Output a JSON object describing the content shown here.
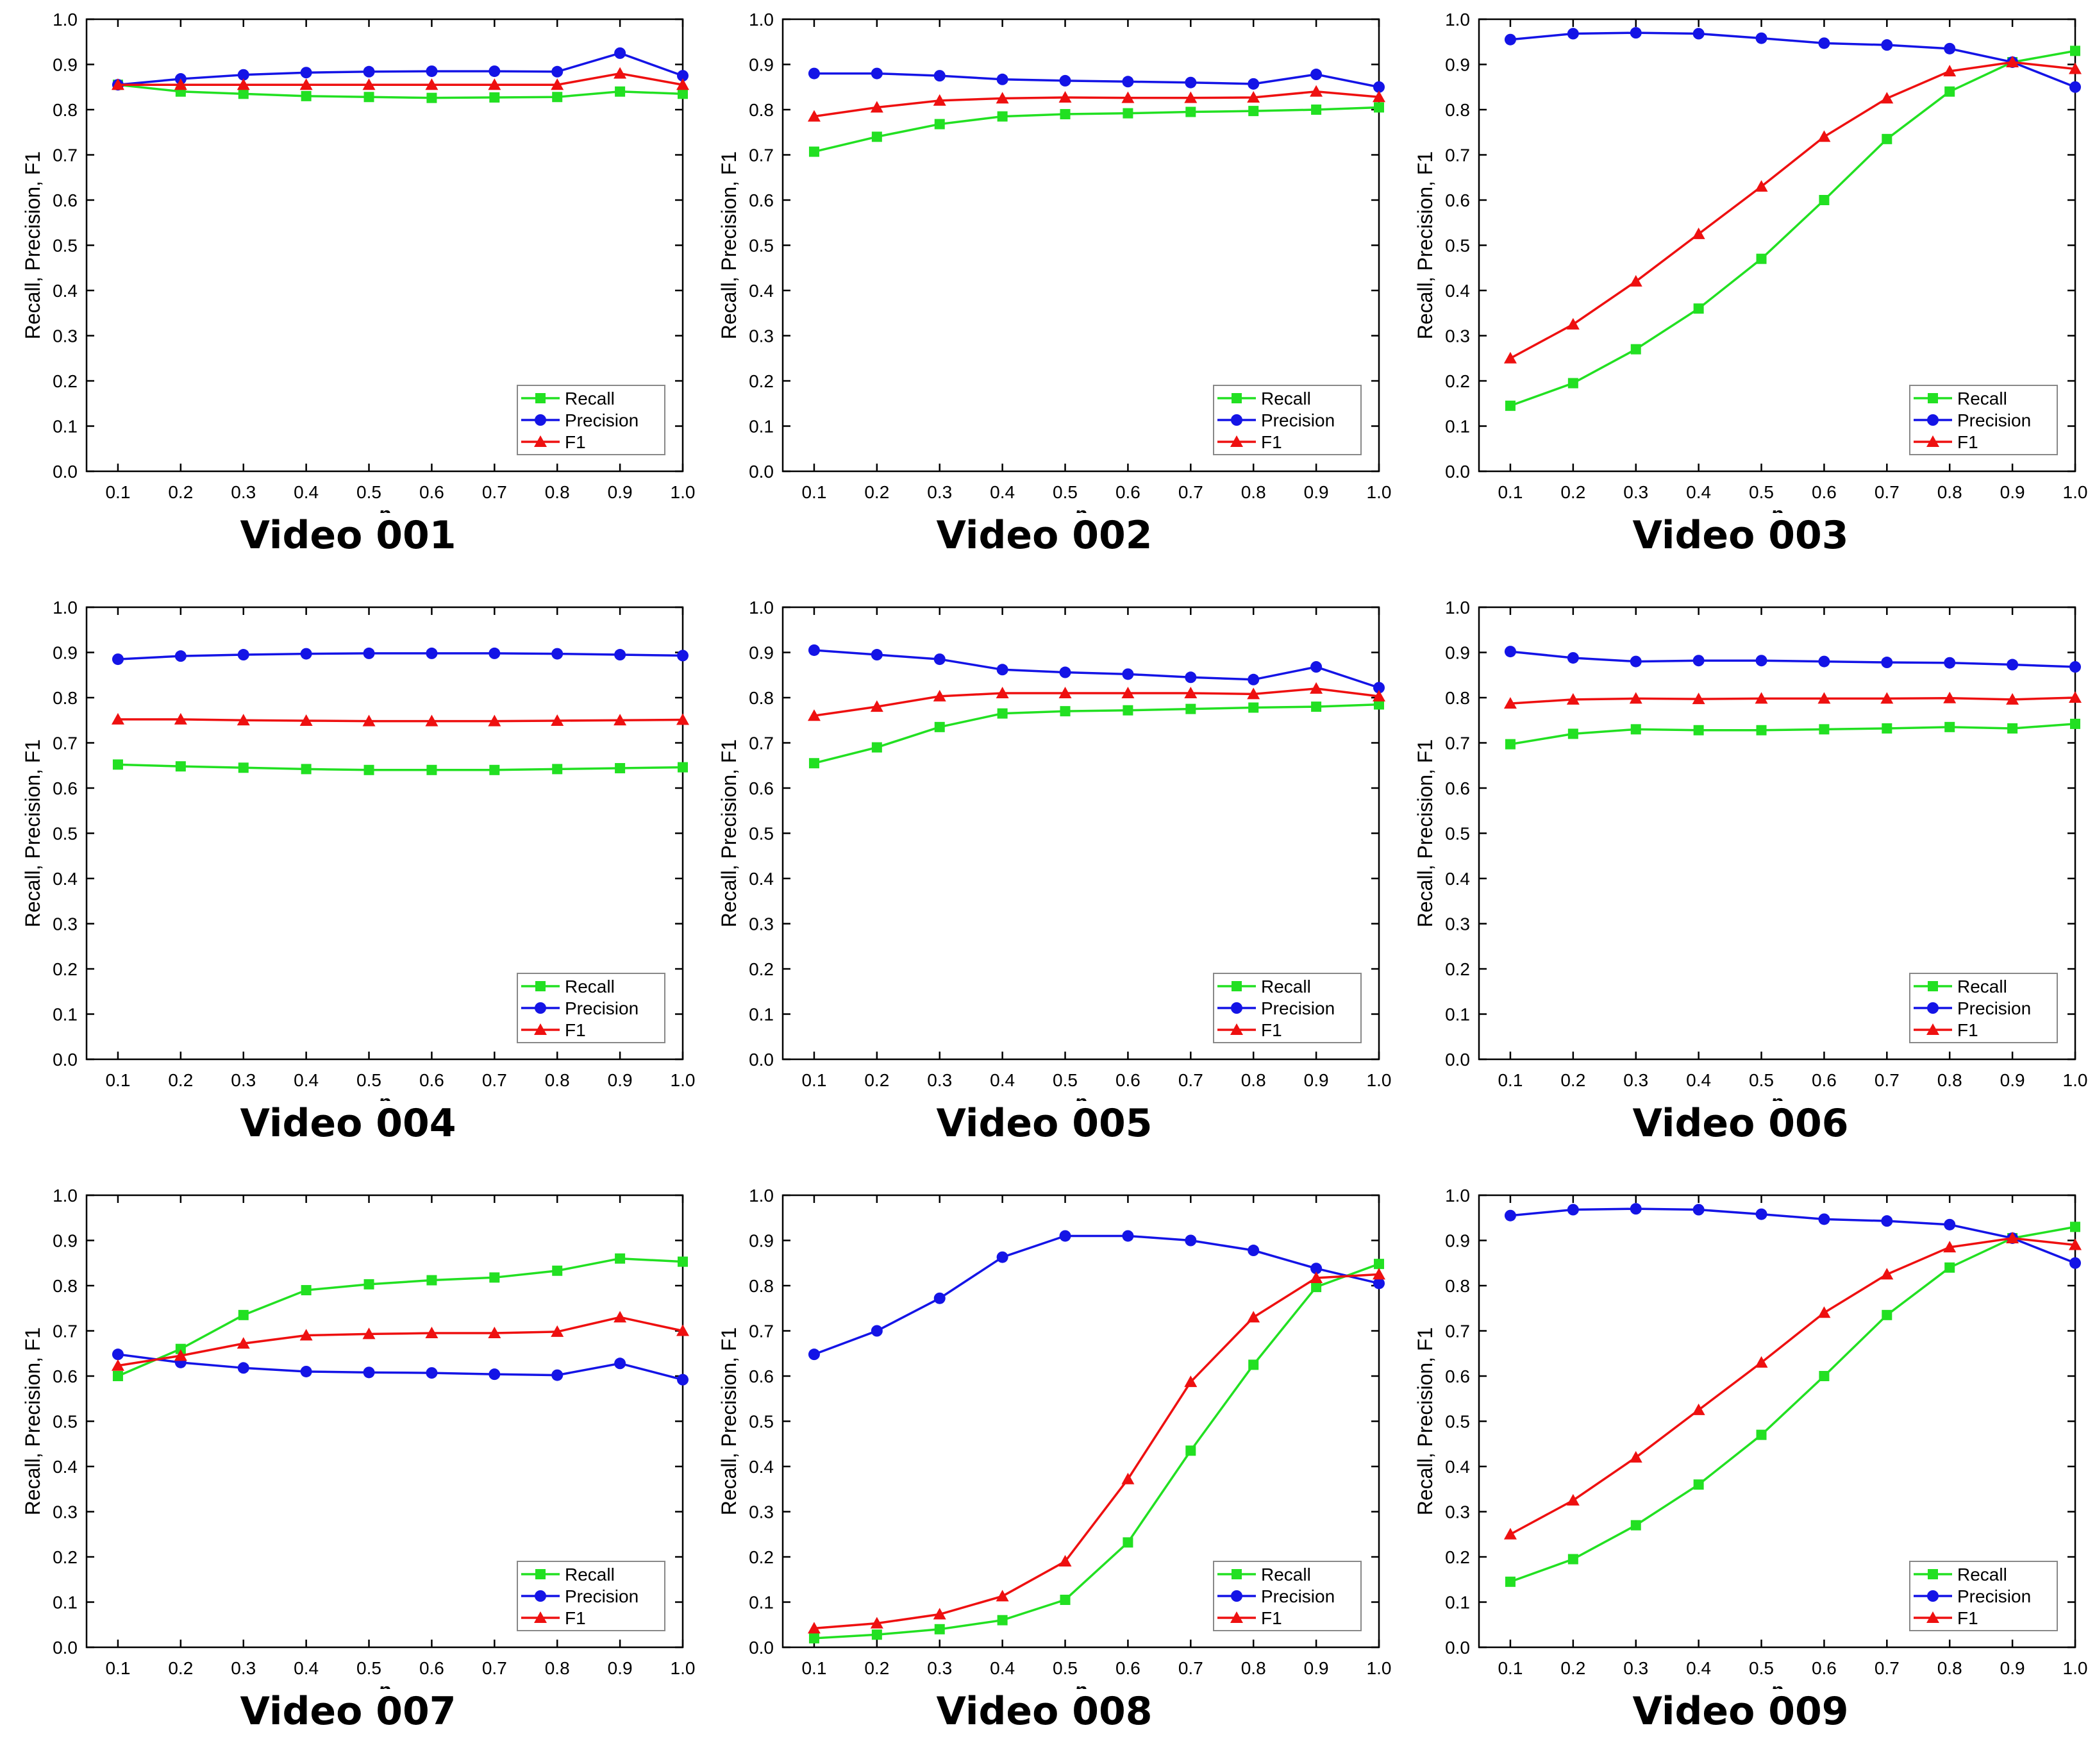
{
  "colors": {
    "Recall": "#22e022",
    "Precision": "#1414e6",
    "F1": "#ee1010"
  },
  "markers": {
    "Recall": "square",
    "Precision": "circle",
    "F1": "triangle"
  },
  "chart_data": [
    {
      "type": "line",
      "title": "Video 001",
      "xlabel": "p",
      "ylabel": "Recall, Precision, F1",
      "xlim": [
        0.1,
        1.0
      ],
      "ylim": [
        0,
        1
      ],
      "legend": "bottom-right",
      "grid": false,
      "x": [
        0.1,
        0.2,
        0.3,
        0.4,
        0.5,
        0.6,
        0.7,
        0.8,
        0.9,
        1.0
      ],
      "xticks": [
        "0.1",
        "0.2",
        "0.3",
        "0.4",
        "0.5",
        "0.6",
        "0.7",
        "0.8",
        "0.9",
        "1.0"
      ],
      "yticks": [
        "0.0",
        "0.1",
        "0.2",
        "0.3",
        "0.4",
        "0.5",
        "0.6",
        "0.7",
        "0.8",
        "0.9",
        "1.0"
      ],
      "series": [
        {
          "name": "Recall",
          "values": [
            0.855,
            0.84,
            0.835,
            0.83,
            0.828,
            0.826,
            0.827,
            0.828,
            0.84,
            0.835
          ]
        },
        {
          "name": "Precision",
          "values": [
            0.855,
            0.868,
            0.877,
            0.882,
            0.884,
            0.885,
            0.885,
            0.884,
            0.925,
            0.875
          ]
        },
        {
          "name": "F1",
          "values": [
            0.855,
            0.855,
            0.855,
            0.855,
            0.855,
            0.855,
            0.855,
            0.855,
            0.88,
            0.855
          ]
        }
      ]
    },
    {
      "type": "line",
      "title": "Video 002",
      "xlabel": "p",
      "ylabel": "Recall, Precision, F1",
      "xlim": [
        0.1,
        1.0
      ],
      "ylim": [
        0,
        1
      ],
      "legend": "bottom-right",
      "grid": false,
      "x": [
        0.1,
        0.2,
        0.3,
        0.4,
        0.5,
        0.6,
        0.7,
        0.8,
        0.9,
        1.0
      ],
      "xticks": [
        "0.1",
        "0.2",
        "0.3",
        "0.4",
        "0.5",
        "0.6",
        "0.7",
        "0.8",
        "0.9",
        "1.0"
      ],
      "yticks": [
        "0.0",
        "0.1",
        "0.2",
        "0.3",
        "0.4",
        "0.5",
        "0.6",
        "0.7",
        "0.8",
        "0.9",
        "1.0"
      ],
      "series": [
        {
          "name": "Recall",
          "values": [
            0.707,
            0.74,
            0.768,
            0.785,
            0.79,
            0.792,
            0.795,
            0.797,
            0.8,
            0.805
          ]
        },
        {
          "name": "Precision",
          "values": [
            0.88,
            0.88,
            0.875,
            0.867,
            0.864,
            0.862,
            0.86,
            0.857,
            0.878,
            0.85
          ]
        },
        {
          "name": "F1",
          "values": [
            0.785,
            0.805,
            0.82,
            0.825,
            0.827,
            0.826,
            0.826,
            0.827,
            0.84,
            0.828
          ]
        }
      ]
    },
    {
      "type": "line",
      "title": "Video 003",
      "xlabel": "p",
      "ylabel": "Recall, Precision, F1",
      "xlim": [
        0.1,
        1.0
      ],
      "ylim": [
        0,
        1
      ],
      "legend": "bottom-right",
      "grid": false,
      "x": [
        0.1,
        0.2,
        0.3,
        0.4,
        0.5,
        0.6,
        0.7,
        0.8,
        0.9,
        1.0
      ],
      "xticks": [
        "0.1",
        "0.2",
        "0.3",
        "0.4",
        "0.5",
        "0.6",
        "0.7",
        "0.8",
        "0.9",
        "1.0"
      ],
      "yticks": [
        "0.0",
        "0.1",
        "0.2",
        "0.3",
        "0.4",
        "0.5",
        "0.6",
        "0.7",
        "0.8",
        "0.9",
        "1.0"
      ],
      "series": [
        {
          "name": "Recall",
          "values": [
            0.145,
            0.195,
            0.27,
            0.36,
            0.47,
            0.6,
            0.735,
            0.84,
            0.905,
            0.93
          ]
        },
        {
          "name": "Precision",
          "values": [
            0.955,
            0.968,
            0.97,
            0.968,
            0.958,
            0.947,
            0.943,
            0.935,
            0.905,
            0.85
          ]
        },
        {
          "name": "F1",
          "values": [
            0.25,
            0.325,
            0.42,
            0.525,
            0.63,
            0.74,
            0.825,
            0.885,
            0.905,
            0.89
          ]
        }
      ]
    },
    {
      "type": "line",
      "title": "Video 004",
      "xlabel": "p",
      "ylabel": "Recall, Precision, F1",
      "xlim": [
        0.1,
        1.0
      ],
      "ylim": [
        0,
        1
      ],
      "legend": "bottom-right",
      "grid": false,
      "x": [
        0.1,
        0.2,
        0.3,
        0.4,
        0.5,
        0.6,
        0.7,
        0.8,
        0.9,
        1.0
      ],
      "xticks": [
        "0.1",
        "0.2",
        "0.3",
        "0.4",
        "0.5",
        "0.6",
        "0.7",
        "0.8",
        "0.9",
        "1.0"
      ],
      "yticks": [
        "0.0",
        "0.1",
        "0.2",
        "0.3",
        "0.4",
        "0.5",
        "0.6",
        "0.7",
        "0.8",
        "0.9",
        "1.0"
      ],
      "series": [
        {
          "name": "Recall",
          "values": [
            0.652,
            0.648,
            0.645,
            0.642,
            0.64,
            0.64,
            0.64,
            0.642,
            0.644,
            0.646
          ]
        },
        {
          "name": "Precision",
          "values": [
            0.885,
            0.892,
            0.895,
            0.897,
            0.898,
            0.898,
            0.898,
            0.897,
            0.895,
            0.893
          ]
        },
        {
          "name": "F1",
          "values": [
            0.752,
            0.752,
            0.75,
            0.749,
            0.748,
            0.748,
            0.748,
            0.749,
            0.75,
            0.751
          ]
        }
      ]
    },
    {
      "type": "line",
      "title": "Video 005",
      "xlabel": "p",
      "ylabel": "Recall, Precision, F1",
      "xlim": [
        0.1,
        1.0
      ],
      "ylim": [
        0,
        1
      ],
      "legend": "bottom-right",
      "grid": false,
      "x": [
        0.1,
        0.2,
        0.3,
        0.4,
        0.5,
        0.6,
        0.7,
        0.8,
        0.9,
        1.0
      ],
      "xticks": [
        "0.1",
        "0.2",
        "0.3",
        "0.4",
        "0.5",
        "0.6",
        "0.7",
        "0.8",
        "0.9",
        "1.0"
      ],
      "yticks": [
        "0.0",
        "0.1",
        "0.2",
        "0.3",
        "0.4",
        "0.5",
        "0.6",
        "0.7",
        "0.8",
        "0.9",
        "1.0"
      ],
      "series": [
        {
          "name": "Recall",
          "values": [
            0.655,
            0.69,
            0.735,
            0.765,
            0.77,
            0.772,
            0.775,
            0.778,
            0.78,
            0.785
          ]
        },
        {
          "name": "Precision",
          "values": [
            0.905,
            0.895,
            0.885,
            0.862,
            0.856,
            0.852,
            0.845,
            0.84,
            0.868,
            0.822
          ]
        },
        {
          "name": "F1",
          "values": [
            0.76,
            0.78,
            0.803,
            0.81,
            0.81,
            0.81,
            0.81,
            0.808,
            0.82,
            0.803
          ]
        }
      ]
    },
    {
      "type": "line",
      "title": "Video 006",
      "xlabel": "p",
      "ylabel": "Recall, Precision, F1",
      "xlim": [
        0.1,
        1.0
      ],
      "ylim": [
        0,
        1
      ],
      "legend": "bottom-right",
      "grid": false,
      "x": [
        0.1,
        0.2,
        0.3,
        0.4,
        0.5,
        0.6,
        0.7,
        0.8,
        0.9,
        1.0
      ],
      "xticks": [
        "0.1",
        "0.2",
        "0.3",
        "0.4",
        "0.5",
        "0.6",
        "0.7",
        "0.8",
        "0.9",
        "1.0"
      ],
      "yticks": [
        "0.0",
        "0.1",
        "0.2",
        "0.3",
        "0.4",
        "0.5",
        "0.6",
        "0.7",
        "0.8",
        "0.9",
        "1.0"
      ],
      "series": [
        {
          "name": "Recall",
          "values": [
            0.697,
            0.72,
            0.73,
            0.728,
            0.728,
            0.73,
            0.732,
            0.735,
            0.732,
            0.742
          ]
        },
        {
          "name": "Precision",
          "values": [
            0.902,
            0.888,
            0.88,
            0.882,
            0.882,
            0.88,
            0.878,
            0.877,
            0.873,
            0.868
          ]
        },
        {
          "name": "F1",
          "values": [
            0.787,
            0.796,
            0.798,
            0.797,
            0.798,
            0.798,
            0.798,
            0.799,
            0.796,
            0.8
          ]
        }
      ]
    },
    {
      "type": "line",
      "title": "Video 007",
      "xlabel": "p",
      "ylabel": "Recall, Precision, F1",
      "xlim": [
        0.1,
        1.0
      ],
      "ylim": [
        0,
        1
      ],
      "legend": "bottom-right",
      "grid": false,
      "x": [
        0.1,
        0.2,
        0.3,
        0.4,
        0.5,
        0.6,
        0.7,
        0.8,
        0.9,
        1.0
      ],
      "xticks": [
        "0.1",
        "0.2",
        "0.3",
        "0.4",
        "0.5",
        "0.6",
        "0.7",
        "0.8",
        "0.9",
        "1.0"
      ],
      "yticks": [
        "0.0",
        "0.1",
        "0.2",
        "0.3",
        "0.4",
        "0.5",
        "0.6",
        "0.7",
        "0.8",
        "0.9",
        "1.0"
      ],
      "series": [
        {
          "name": "Recall",
          "values": [
            0.6,
            0.66,
            0.735,
            0.79,
            0.803,
            0.812,
            0.818,
            0.833,
            0.86,
            0.853
          ]
        },
        {
          "name": "Precision",
          "values": [
            0.648,
            0.63,
            0.618,
            0.61,
            0.608,
            0.607,
            0.604,
            0.602,
            0.628,
            0.592
          ]
        },
        {
          "name": "F1",
          "values": [
            0.623,
            0.645,
            0.672,
            0.69,
            0.693,
            0.695,
            0.695,
            0.698,
            0.73,
            0.7
          ]
        }
      ]
    },
    {
      "type": "line",
      "title": "Video 008",
      "xlabel": "p",
      "ylabel": "Recall, Precision, F1",
      "xlim": [
        0.1,
        1.0
      ],
      "ylim": [
        0,
        1
      ],
      "legend": "bottom-right",
      "grid": false,
      "x": [
        0.1,
        0.2,
        0.3,
        0.4,
        0.5,
        0.6,
        0.7,
        0.8,
        0.9,
        1.0
      ],
      "xticks": [
        "0.1",
        "0.2",
        "0.3",
        "0.4",
        "0.5",
        "0.6",
        "0.7",
        "0.8",
        "0.9",
        "1.0"
      ],
      "yticks": [
        "0.0",
        "0.1",
        "0.2",
        "0.3",
        "0.4",
        "0.5",
        "0.6",
        "0.7",
        "0.8",
        "0.9",
        "1.0"
      ],
      "series": [
        {
          "name": "Recall",
          "values": [
            0.02,
            0.028,
            0.04,
            0.06,
            0.105,
            0.232,
            0.435,
            0.625,
            0.797,
            0.848
          ]
        },
        {
          "name": "Precision",
          "values": [
            0.648,
            0.7,
            0.772,
            0.863,
            0.91,
            0.91,
            0.9,
            0.878,
            0.838,
            0.805
          ]
        },
        {
          "name": "F1",
          "values": [
            0.042,
            0.053,
            0.073,
            0.113,
            0.19,
            0.372,
            0.587,
            0.73,
            0.817,
            0.825
          ]
        }
      ]
    },
    {
      "type": "line",
      "title": "Video 009",
      "xlabel": "p",
      "ylabel": "Recall, Precision, F1",
      "xlim": [
        0.1,
        1.0
      ],
      "ylim": [
        0,
        1
      ],
      "legend": "bottom-right",
      "grid": false,
      "x": [
        0.1,
        0.2,
        0.3,
        0.4,
        0.5,
        0.6,
        0.7,
        0.8,
        0.9,
        1.0
      ],
      "xticks": [
        "0.1",
        "0.2",
        "0.3",
        "0.4",
        "0.5",
        "0.6",
        "0.7",
        "0.8",
        "0.9",
        "1.0"
      ],
      "yticks": [
        "0.0",
        "0.1",
        "0.2",
        "0.3",
        "0.4",
        "0.5",
        "0.6",
        "0.7",
        "0.8",
        "0.9",
        "1.0"
      ],
      "series": [
        {
          "name": "Recall",
          "values": [
            0.145,
            0.195,
            0.27,
            0.36,
            0.47,
            0.6,
            0.735,
            0.84,
            0.905,
            0.93
          ]
        },
        {
          "name": "Precision",
          "values": [
            0.955,
            0.968,
            0.97,
            0.968,
            0.958,
            0.947,
            0.943,
            0.935,
            0.905,
            0.85
          ]
        },
        {
          "name": "F1",
          "values": [
            0.25,
            0.325,
            0.42,
            0.525,
            0.63,
            0.74,
            0.825,
            0.885,
            0.905,
            0.89
          ]
        }
      ]
    }
  ]
}
